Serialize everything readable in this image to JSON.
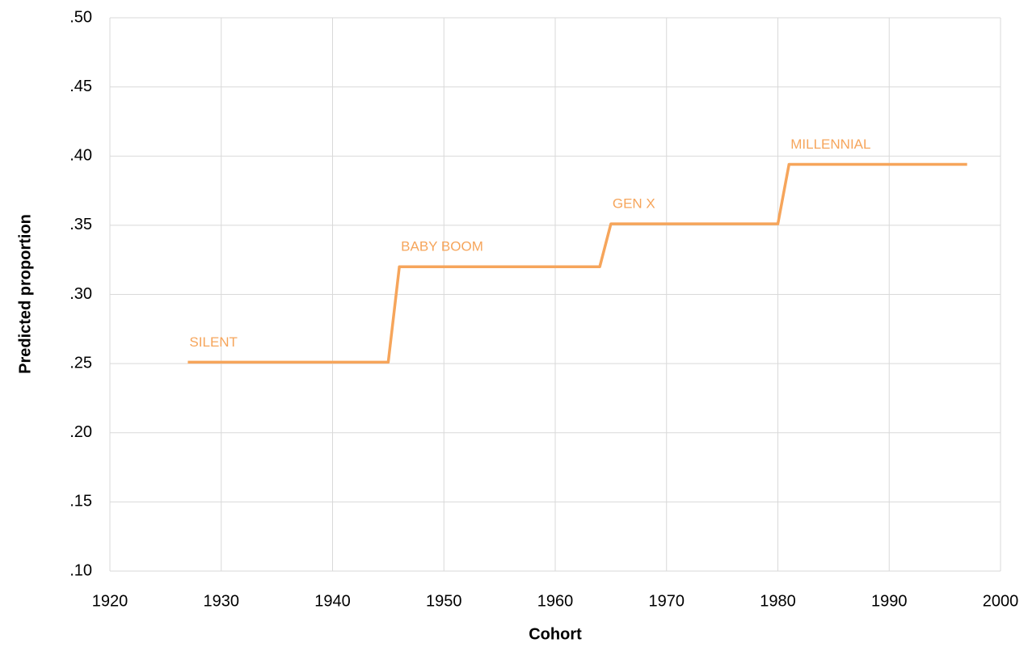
{
  "chart_data": {
    "type": "line",
    "x_label": "Cohort",
    "y_label": "Predicted proportion",
    "x": [
      1927,
      1945,
      1946,
      1964,
      1965,
      1980,
      1981,
      1997
    ],
    "values": [
      0.251,
      0.251,
      0.32,
      0.32,
      0.351,
      0.351,
      0.394,
      0.394
    ],
    "color": "#f6a55b",
    "annotations": [
      "SILENT",
      "BABY BOOM",
      "GEN X",
      "MILLENNIAL"
    ],
    "xlim": [
      1920,
      2000
    ],
    "xticks": [
      1920,
      1930,
      1940,
      1950,
      1960,
      1970,
      1980,
      1990,
      2000
    ],
    "ylim": [
      0.1,
      0.5
    ],
    "yticks": [
      {
        "value": 0.1,
        "label": ".10"
      },
      {
        "value": 0.15,
        "label": ".15"
      },
      {
        "value": 0.2,
        "label": ".20"
      },
      {
        "value": 0.25,
        "label": ".25"
      },
      {
        "value": 0.3,
        "label": ".30"
      },
      {
        "value": 0.35,
        "label": ".35"
      },
      {
        "value": 0.4,
        "label": ".40"
      },
      {
        "value": 0.45,
        "label": ".45"
      },
      {
        "value": 0.5,
        "label": ".50"
      }
    ],
    "grid": true
  }
}
